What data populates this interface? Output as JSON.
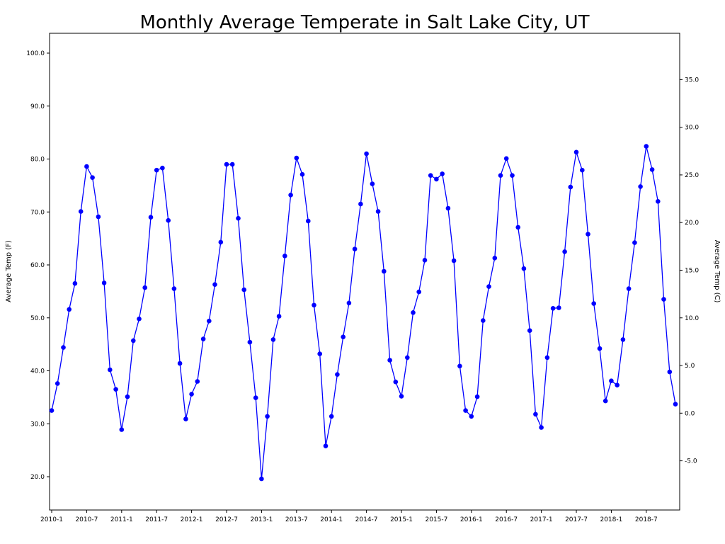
{
  "title": "Monthly Average Temperate in Salt Lake City, UT",
  "chart_data": {
    "type": "line",
    "title": "Monthly Average Temperate in Salt Lake City, UT",
    "xlabel": "",
    "ylabel_left": "Average Temp (F)",
    "ylabel_right": "Average Temp (C)",
    "line_color": "#0000ff",
    "marker": "o",
    "grid": false,
    "legend": "none",
    "ylim_left_F": [
      13.7,
      103.8
    ],
    "yticks_left_labels": [
      "100.0",
      "90.0",
      "80.0",
      "70.0",
      "60.0",
      "50.0",
      "40.0",
      "30.0",
      "20.0"
    ],
    "yticks_left_values": [
      100,
      90,
      80,
      70,
      60,
      50,
      40,
      30,
      20
    ],
    "yticks_right_labels": [
      "35.0",
      "30.0",
      "25.0",
      "20.0",
      "15.0",
      "10.0",
      "5.0",
      "0.0",
      "-5.0"
    ],
    "yticks_right_values_C": [
      35,
      30,
      25,
      20,
      15,
      10,
      5,
      0,
      -5
    ],
    "xtick_labels": [
      "2010-1",
      "2010-7",
      "2011-1",
      "2011-7",
      "2012-1",
      "2012-7",
      "2013-1",
      "2013-7",
      "2014-1",
      "2014-7",
      "2015-1",
      "2015-7",
      "2016-1",
      "2016-7",
      "2017-1",
      "2017-7",
      "2018-1",
      "2018-7"
    ],
    "xtick_month_indices": [
      0,
      6,
      12,
      18,
      24,
      30,
      36,
      42,
      48,
      54,
      60,
      66,
      72,
      78,
      84,
      90,
      96,
      102
    ],
    "x": [
      "2010-1",
      "2010-2",
      "2010-3",
      "2010-4",
      "2010-5",
      "2010-6",
      "2010-7",
      "2010-8",
      "2010-9",
      "2010-10",
      "2010-11",
      "2010-12",
      "2011-1",
      "2011-2",
      "2011-3",
      "2011-4",
      "2011-5",
      "2011-6",
      "2011-7",
      "2011-8",
      "2011-9",
      "2011-10",
      "2011-11",
      "2011-12",
      "2012-1",
      "2012-2",
      "2012-3",
      "2012-4",
      "2012-5",
      "2012-6",
      "2012-7",
      "2012-8",
      "2012-9",
      "2012-10",
      "2012-11",
      "2012-12",
      "2013-1",
      "2013-2",
      "2013-3",
      "2013-4",
      "2013-5",
      "2013-6",
      "2013-7",
      "2013-8",
      "2013-9",
      "2013-10",
      "2013-11",
      "2013-12",
      "2014-1",
      "2014-2",
      "2014-3",
      "2014-4",
      "2014-5",
      "2014-6",
      "2014-7",
      "2014-8",
      "2014-9",
      "2014-10",
      "2014-11",
      "2014-12",
      "2015-1",
      "2015-2",
      "2015-3",
      "2015-4",
      "2015-5",
      "2015-6",
      "2015-7",
      "2015-8",
      "2015-9",
      "2015-10",
      "2015-11",
      "2015-12",
      "2016-1",
      "2016-2",
      "2016-3",
      "2016-4",
      "2016-5",
      "2016-6",
      "2016-7",
      "2016-8",
      "2016-9",
      "2016-10",
      "2016-11",
      "2016-12",
      "2017-1",
      "2017-2",
      "2017-3",
      "2017-4",
      "2017-5",
      "2017-6",
      "2017-7",
      "2017-8",
      "2017-9",
      "2017-10",
      "2017-11",
      "2017-12",
      "2018-1",
      "2018-2",
      "2018-3",
      "2018-4",
      "2018-5",
      "2018-6",
      "2018-7",
      "2018-8",
      "2018-9",
      "2018-10",
      "2018-11",
      "2018-12"
    ],
    "series": [
      {
        "name": "Monthly Average Temp (F)",
        "values": [
          32.5,
          37.6,
          44.4,
          51.6,
          56.5,
          70.1,
          78.6,
          76.5,
          69.1,
          56.6,
          40.2,
          36.5,
          28.9,
          35.1,
          45.7,
          49.8,
          55.7,
          69.0,
          77.9,
          78.3,
          68.4,
          55.5,
          41.4,
          30.9,
          35.6,
          38.0,
          46.0,
          49.4,
          56.3,
          64.3,
          79.0,
          79.0,
          68.8,
          55.3,
          45.4,
          34.9,
          19.6,
          31.4,
          45.9,
          50.3,
          61.7,
          73.2,
          80.2,
          77.1,
          68.3,
          52.4,
          43.2,
          25.8,
          31.4,
          39.3,
          46.4,
          52.8,
          63.0,
          71.5,
          81.0,
          75.3,
          70.1,
          58.8,
          42.0,
          37.9,
          35.2,
          42.5,
          51.0,
          54.9,
          60.9,
          76.9,
          76.2,
          77.2,
          70.7,
          60.8,
          40.9,
          32.5,
          31.4,
          35.1,
          49.5,
          55.9,
          61.3,
          76.9,
          80.1,
          76.9,
          67.1,
          59.3,
          47.6,
          31.8,
          29.3,
          42.5,
          51.8,
          51.9,
          62.5,
          74.7,
          81.3,
          77.9,
          65.8,
          52.7,
          44.2,
          34.3,
          38.1,
          37.3,
          45.9,
          55.5,
          64.2,
          74.8,
          82.4,
          78.0,
          72.0,
          53.5,
          39.8,
          33.7
        ]
      }
    ]
  }
}
